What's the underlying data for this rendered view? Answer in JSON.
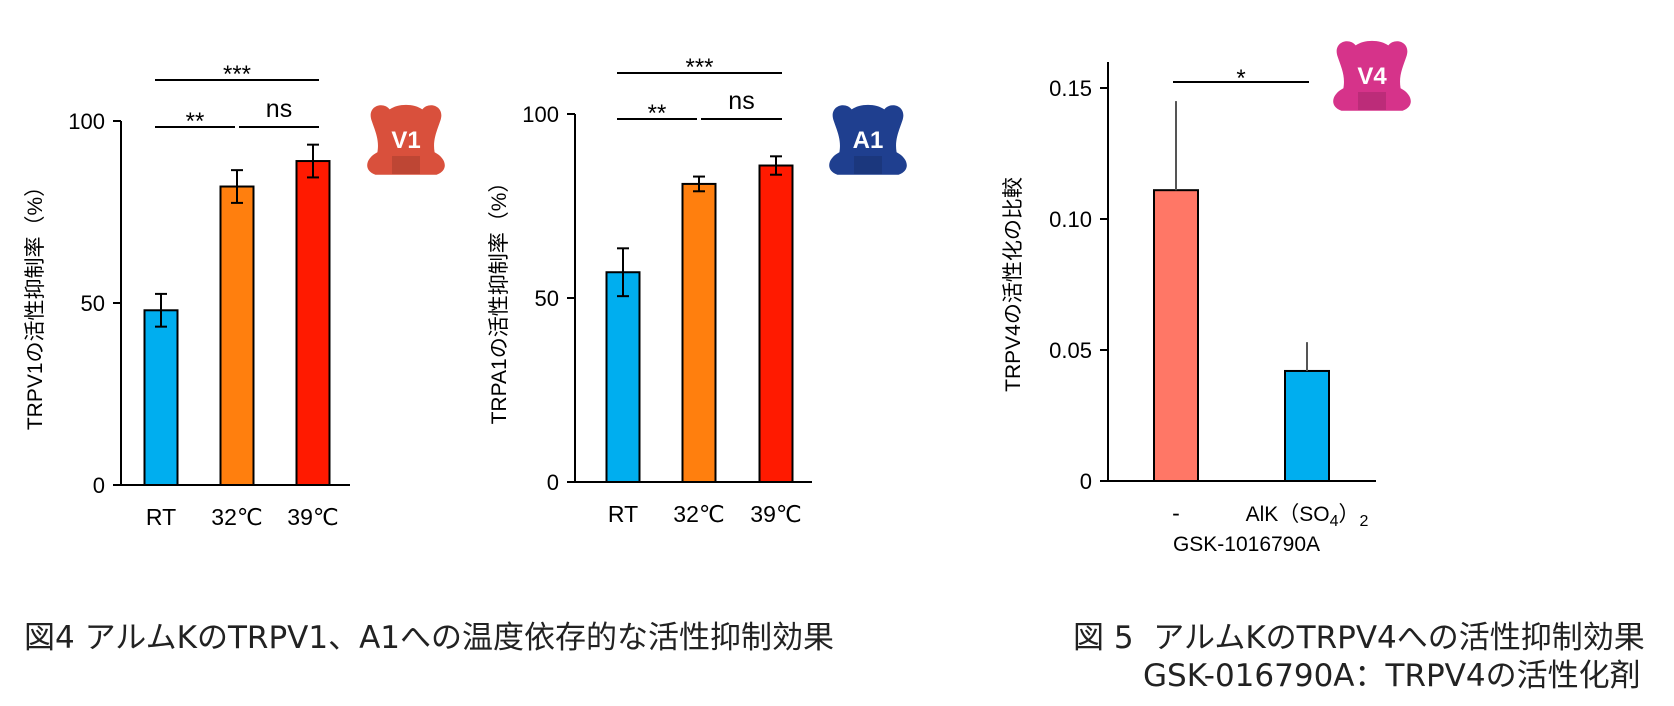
{
  "chart_data": [
    {
      "type": "bar",
      "ylabel": "TRPV1の活性抑制率（%）",
      "categories": [
        "RT",
        "32℃",
        "39℃"
      ],
      "values": [
        48,
        82,
        89
      ],
      "errors": [
        4.5,
        4.5,
        4.5
      ],
      "colors": [
        "#00AEEF",
        "#FF7F0E",
        "#FF1A00"
      ],
      "ylim": [
        0,
        100
      ],
      "yticks": [
        "0",
        "50",
        "100"
      ],
      "significance": [
        {
          "from": 0,
          "to": 1,
          "label": "**"
        },
        {
          "from": 1,
          "to": 2,
          "label": "ns"
        },
        {
          "from": 0,
          "to": 2,
          "label": "***"
        }
      ],
      "badge": {
        "label": "V1",
        "color": "#D9503C",
        "icon": "channel-icon"
      }
    },
    {
      "type": "bar",
      "ylabel": "TRPA1の活性抑制率（%）",
      "categories": [
        "RT",
        "32℃",
        "39℃"
      ],
      "values": [
        57,
        81,
        86
      ],
      "errors": [
        6.5,
        2,
        2.5
      ],
      "colors": [
        "#00AEEF",
        "#FF7F0E",
        "#FF1A00"
      ],
      "ylim": [
        0,
        100
      ],
      "yticks": [
        "0",
        "50",
        "100"
      ],
      "significance": [
        {
          "from": 0,
          "to": 1,
          "label": "**"
        },
        {
          "from": 1,
          "to": 2,
          "label": "ns"
        },
        {
          "from": 0,
          "to": 2,
          "label": "***"
        }
      ],
      "badge": {
        "label": "A1",
        "color": "#1F3F8F",
        "icon": "channel-icon"
      }
    },
    {
      "type": "bar",
      "ylabel": "TRPV4の活性化の比較",
      "categories": [
        "-",
        "AlK(SO4)2"
      ],
      "xlabel": "GSK-1016790A",
      "values": [
        0.111,
        0.042
      ],
      "errors_upper": [
        0.034,
        0.011
      ],
      "colors": [
        "#FF7766",
        "#00AEEF"
      ],
      "ylim": [
        0,
        0.15
      ],
      "yticks": [
        "0",
        "0.05",
        "0.10",
        "0.15"
      ],
      "significance": [
        {
          "from": 0,
          "to": 1,
          "label": "*"
        }
      ],
      "badge": {
        "label": "V4",
        "color": "#D6338A",
        "icon": "channel-icon"
      }
    }
  ],
  "captions": {
    "fig4": "図4 アルムKのTRPV1、A1への温度依存的な活性抑制効果",
    "fig5_line1": "図 5  アルムKのTRPV4への活性抑制効果",
    "fig5_line2": "GSK-016790A：TRPV4の活性化剤"
  }
}
